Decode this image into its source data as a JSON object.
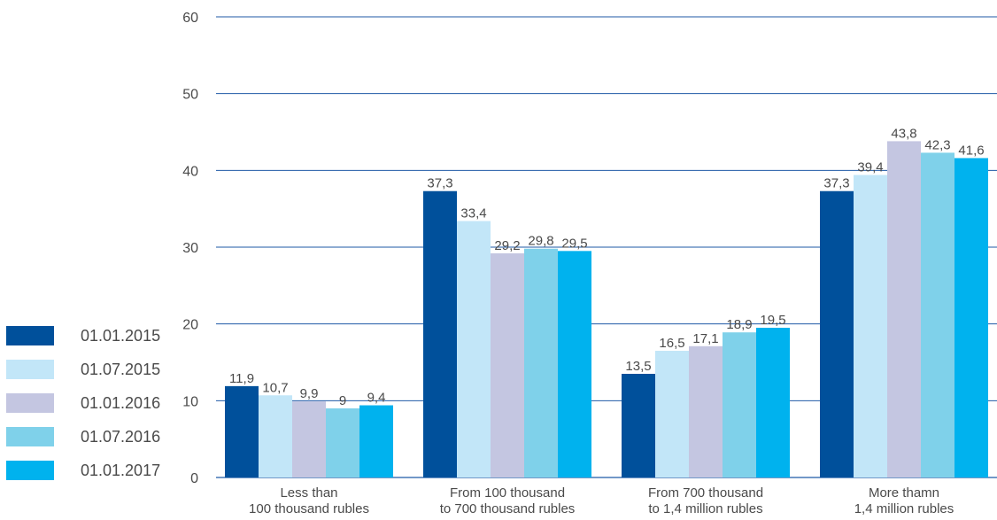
{
  "chart_data": {
    "type": "bar",
    "categories": [
      [
        "Less than",
        "100 thousand rubles"
      ],
      [
        "From 100 thousand",
        "to 700 thousand rubles"
      ],
      [
        "From 700 thousand",
        "to 1,4 million rubles"
      ],
      [
        "More thamn",
        "1,4 million rubles"
      ]
    ],
    "series": [
      {
        "name": "01.01.2015",
        "color": "#00509b",
        "values": [
          11.9,
          37.3,
          13.5,
          37.3
        ],
        "labels": [
          "11,9",
          "37,3",
          "13,5",
          "37,3"
        ]
      },
      {
        "name": "01.07.2015",
        "color": "#c2e6f8",
        "values": [
          10.7,
          33.4,
          16.5,
          39.4
        ],
        "labels": [
          "10,7",
          "33,4",
          "16,5",
          "39,4"
        ]
      },
      {
        "name": "01.01.2016",
        "color": "#c4c6e1",
        "values": [
          9.9,
          29.2,
          17.1,
          43.8
        ],
        "labels": [
          "9,9",
          "29,2",
          "17,1",
          "43,8"
        ]
      },
      {
        "name": "01.07.2016",
        "color": "#7fd1ea",
        "values": [
          9,
          29.8,
          18.9,
          42.3
        ],
        "labels": [
          "9",
          "29,8",
          "18,9",
          "42,3"
        ]
      },
      {
        "name": "01.01.2017",
        "color": "#00b2ee",
        "values": [
          9.4,
          29.5,
          19.5,
          41.6
        ],
        "labels": [
          "9,4",
          "29,5",
          "19,5",
          "41,6"
        ]
      }
    ],
    "yticks": [
      "0",
      "10",
      "20",
      "30",
      "40",
      "50",
      "60"
    ],
    "ylim": [
      0,
      60
    ],
    "grid": true,
    "legend_position": "left"
  }
}
